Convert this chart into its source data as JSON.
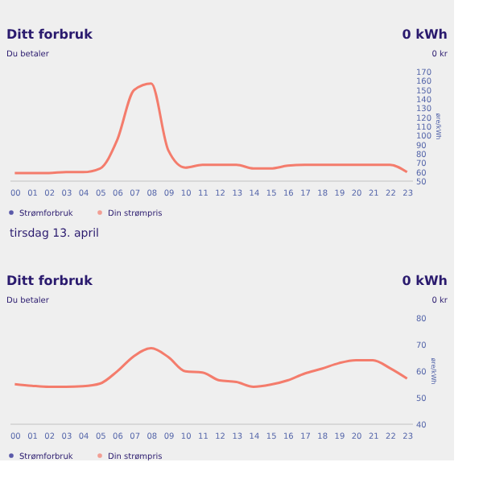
{
  "chart_data": [
    {
      "type": "line",
      "title": "Ditt forbruk",
      "subtitle": "Du betaler",
      "annotations": [
        "0 kWh",
        "0 kr"
      ],
      "ylabel": "øre/kWh",
      "categories": [
        "00",
        "01",
        "02",
        "03",
        "04",
        "05",
        "06",
        "07",
        "08",
        "09",
        "10",
        "11",
        "12",
        "13",
        "14",
        "15",
        "16",
        "17",
        "18",
        "19",
        "20",
        "21",
        "22",
        "23"
      ],
      "series": [
        {
          "name": "Strømforbruk",
          "color": "#1b1a8c",
          "values": [
            null,
            null,
            null,
            null,
            null,
            null,
            null,
            null,
            null,
            null,
            null,
            null,
            null,
            null,
            null,
            null,
            null,
            null,
            null,
            null,
            null,
            null,
            null,
            null
          ]
        },
        {
          "name": "Din strømpris",
          "color": "#f47c6c",
          "values": [
            58,
            58,
            58,
            59,
            59,
            63,
            94,
            149,
            156,
            83,
            64,
            67,
            67,
            67,
            63,
            63,
            66,
            67,
            67,
            67,
            67,
            67,
            67,
            59
          ]
        }
      ],
      "ylim": [
        50,
        170
      ],
      "yticks": [
        50,
        60,
        70,
        80,
        90,
        100,
        110,
        120,
        130,
        140,
        150,
        160,
        170
      ],
      "grid": false,
      "legend": "bottom",
      "marker": "none",
      "line_style": "solid"
    },
    {
      "type": "line",
      "title": "Ditt forbruk",
      "subtitle": "Du betaler",
      "annotations": [
        "0 kWh",
        "0 kr",
        "tirsdag 13. april"
      ],
      "ylabel": "øre/kWh",
      "categories": [
        "00",
        "01",
        "02",
        "03",
        "04",
        "05",
        "06",
        "07",
        "08",
        "09",
        "10",
        "11",
        "12",
        "13",
        "14",
        "15",
        "16",
        "17",
        "18",
        "19",
        "20",
        "21",
        "22",
        "23"
      ],
      "series": [
        {
          "name": "Strømforbruk",
          "color": "#1b1a8c",
          "values": [
            null,
            null,
            null,
            null,
            null,
            null,
            null,
            null,
            null,
            null,
            null,
            null,
            null,
            null,
            null,
            null,
            null,
            null,
            null,
            null,
            null,
            null,
            null,
            null
          ]
        },
        {
          "name": "Din strømpris",
          "color": "#f47c6c",
          "values": [
            54.8,
            54.2,
            53.8,
            53.8,
            54,
            55,
            59.6,
            65.4,
            68.3,
            65,
            59.6,
            59.2,
            56.2,
            55.6,
            53.8,
            54.6,
            56.2,
            58.8,
            60.6,
            62.7,
            63.8,
            63.8,
            60.8,
            56.9
          ]
        }
      ],
      "ylim": [
        40,
        80
      ],
      "yticks": [
        40,
        50,
        60,
        70,
        80
      ],
      "grid": false,
      "legend": "bottom",
      "marker": "none",
      "line_style": "solid"
    }
  ]
}
